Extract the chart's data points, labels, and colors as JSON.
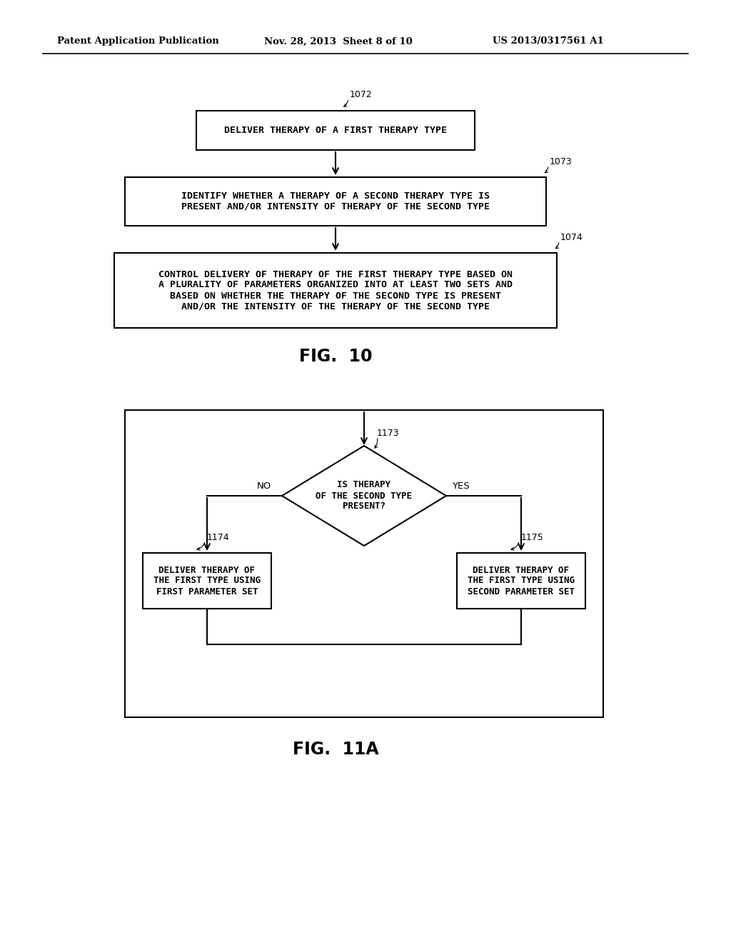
{
  "bg_color": "#ffffff",
  "header_left": "Patent Application Publication",
  "header_mid": "Nov. 28, 2013  Sheet 8 of 10",
  "header_right": "US 2013/0317561 A1",
  "fig10_title": "FIG.  10",
  "fig11a_title": "FIG.  11A",
  "box1072_label": "1072",
  "box1072_text": "DELIVER THERAPY OF A FIRST THERAPY TYPE",
  "box1073_label": "1073",
  "box1073_text": "IDENTIFY WHETHER A THERAPY OF A SECOND THERAPY TYPE IS\nPRESENT AND/OR INTENSITY OF THERAPY OF THE SECOND TYPE",
  "box1074_label": "1074",
  "box1074_text": "CONTROL DELIVERY OF THERAPY OF THE FIRST THERAPY TYPE BASED ON\nA PLURALITY OF PARAMETERS ORGANIZED INTO AT LEAST TWO SETS AND\nBASED ON WHETHER THE THERAPY OF THE SECOND TYPE IS PRESENT\nAND/OR THE INTENSITY OF THE THERAPY OF THE SECOND TYPE",
  "diamond1173_label": "1173",
  "diamond1173_text": "IS THERAPY\nOF THE SECOND TYPE\nPRESENT?",
  "box1174_label": "1174",
  "box1174_text": "DELIVER THERAPY OF\nTHE FIRST TYPE USING\nFIRST PARAMETER SET",
  "box1175_label": "1175",
  "box1175_text": "DELIVER THERAPY OF\nTHE FIRST TYPE USING\nSECOND PARAMETER SET",
  "label_no": "NO",
  "label_yes": "YES"
}
